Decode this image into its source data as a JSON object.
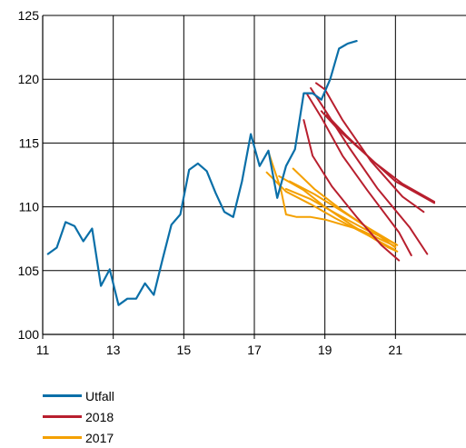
{
  "chart_data": {
    "type": "line",
    "title": "",
    "xlabel": "",
    "ylabel": "",
    "xlim": [
      11,
      23
    ],
    "ylim": [
      100,
      125
    ],
    "x_ticks": [
      11,
      13,
      15,
      17,
      19,
      21
    ],
    "y_ticks": [
      100,
      105,
      110,
      115,
      120,
      125
    ],
    "grid": true,
    "legend_position": "bottom-left",
    "colors": {
      "Utfall": "#0A6FA8",
      "2018": "#B81F2E",
      "2017": "#F4A000"
    },
    "series": [
      {
        "name": "Utfall",
        "color_key": "Utfall",
        "points": [
          [
            11.15,
            106.3
          ],
          [
            11.4,
            106.8
          ],
          [
            11.65,
            108.8
          ],
          [
            11.9,
            108.5
          ],
          [
            12.15,
            107.3
          ],
          [
            12.4,
            108.3
          ],
          [
            12.65,
            103.8
          ],
          [
            12.9,
            105.1
          ],
          [
            13.15,
            102.3
          ],
          [
            13.4,
            102.8
          ],
          [
            13.65,
            102.8
          ],
          [
            13.9,
            104.0
          ],
          [
            14.15,
            103.1
          ],
          [
            14.4,
            105.9
          ],
          [
            14.65,
            108.6
          ],
          [
            14.9,
            109.4
          ],
          [
            15.15,
            112.9
          ],
          [
            15.4,
            113.4
          ],
          [
            15.65,
            112.8
          ],
          [
            15.9,
            111.1
          ],
          [
            16.15,
            109.6
          ],
          [
            16.4,
            109.2
          ],
          [
            16.65,
            112.0
          ],
          [
            16.9,
            115.7
          ],
          [
            17.15,
            113.2
          ],
          [
            17.4,
            114.4
          ],
          [
            17.65,
            110.7
          ],
          [
            17.9,
            113.2
          ],
          [
            18.15,
            114.5
          ],
          [
            18.4,
            118.9
          ],
          [
            18.65,
            118.9
          ],
          [
            18.9,
            118.4
          ],
          [
            19.15,
            120.0
          ],
          [
            19.4,
            122.4
          ],
          [
            19.65,
            122.8
          ],
          [
            19.9,
            123.0
          ]
        ]
      },
      {
        "name": "2018",
        "color_key": "2018",
        "segments": [
          [
            [
              18.4,
              116.8
            ],
            [
              18.65,
              114.0
            ],
            [
              19.2,
              111.6
            ],
            [
              19.9,
              109.2
            ],
            [
              20.6,
              107.0
            ],
            [
              21.1,
              105.8
            ]
          ],
          [
            [
              18.5,
              118.8
            ],
            [
              18.9,
              117.0
            ],
            [
              19.5,
              114.0
            ],
            [
              20.2,
              111.3
            ],
            [
              21.1,
              108.0
            ],
            [
              21.45,
              106.2
            ]
          ],
          [
            [
              18.6,
              119.3
            ],
            [
              19.0,
              117.6
            ],
            [
              19.7,
              114.6
            ],
            [
              20.5,
              111.4
            ],
            [
              21.4,
              108.4
            ],
            [
              21.9,
              106.3
            ]
          ],
          [
            [
              18.75,
              119.7
            ],
            [
              19.0,
              119.2
            ],
            [
              19.5,
              116.8
            ],
            [
              20.3,
              113.6
            ],
            [
              21.2,
              110.8
            ],
            [
              21.8,
              109.6
            ]
          ],
          [
            [
              18.9,
              117.5
            ],
            [
              19.4,
              116.0
            ],
            [
              20.2,
              114.0
            ],
            [
              21.0,
              112.0
            ],
            [
              22.1,
              110.3
            ]
          ],
          [
            [
              19.05,
              117.2
            ],
            [
              19.6,
              115.6
            ],
            [
              20.4,
              113.5
            ],
            [
              21.2,
              111.8
            ],
            [
              22.1,
              110.4
            ]
          ]
        ]
      },
      {
        "name": "2017",
        "color_key": "2017",
        "segments": [
          [
            [
              17.4,
              114.3
            ],
            [
              17.75,
              111.4
            ],
            [
              17.9,
              109.4
            ],
            [
              18.2,
              109.2
            ],
            [
              18.6,
              109.2
            ],
            [
              19.0,
              109.0
            ],
            [
              20.0,
              108.2
            ],
            [
              21.0,
              106.9
            ]
          ],
          [
            [
              17.35,
              112.7
            ],
            [
              17.9,
              111.2
            ],
            [
              18.6,
              110.2
            ],
            [
              19.3,
              109.1
            ],
            [
              20.2,
              107.8
            ],
            [
              21.0,
              106.6
            ]
          ],
          [
            [
              17.7,
              112.4
            ],
            [
              18.4,
              111.3
            ],
            [
              19.0,
              110.0
            ],
            [
              19.8,
              108.5
            ],
            [
              20.8,
              106.8
            ],
            [
              21.05,
              106.5
            ]
          ],
          [
            [
              17.9,
              111.4
            ],
            [
              18.6,
              110.6
            ],
            [
              19.3,
              109.5
            ],
            [
              20.1,
              108.3
            ],
            [
              21.0,
              107.1
            ]
          ],
          [
            [
              18.0,
              112.0
            ],
            [
              18.7,
              111.0
            ],
            [
              19.4,
              109.8
            ],
            [
              20.2,
              108.4
            ],
            [
              21.05,
              107.0
            ]
          ],
          [
            [
              18.1,
              113.0
            ],
            [
              18.7,
              111.4
            ],
            [
              19.5,
              109.7
            ],
            [
              20.3,
              108.2
            ],
            [
              21.0,
              106.8
            ]
          ]
        ]
      }
    ],
    "legend": [
      {
        "label": "Utfall",
        "color_key": "Utfall"
      },
      {
        "label": "2018",
        "color_key": "2018"
      },
      {
        "label": "2017",
        "color_key": "2017"
      }
    ]
  }
}
